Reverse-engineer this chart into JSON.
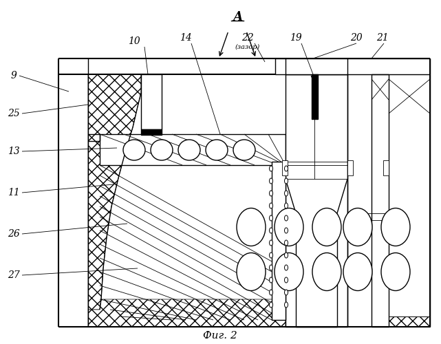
{
  "bg_color": "#ffffff",
  "fig_title": "Фиг. 2",
  "section_letter": "А",
  "note_22": "(зазор)"
}
